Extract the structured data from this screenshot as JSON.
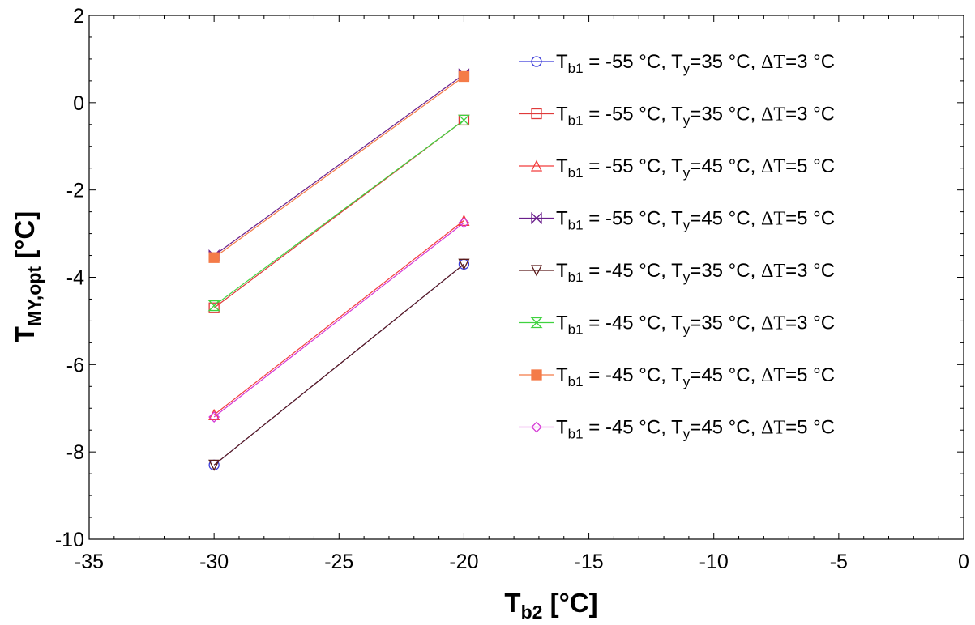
{
  "chart_data": {
    "type": "line",
    "xlabel": {
      "main": "T",
      "sub": "b2",
      "unit": " [°C]"
    },
    "ylabel": {
      "main": "T",
      "sub": "MY,opt",
      "unit": " [°C]"
    },
    "xlim": [
      -35,
      0
    ],
    "ylim": [
      -10,
      2
    ],
    "xticks": [
      -35,
      -30,
      -25,
      -20,
      -15,
      -10,
      -5,
      0
    ],
    "yticks": [
      -10,
      -8,
      -6,
      -4,
      -2,
      0,
      2
    ],
    "x": [
      -30,
      -20
    ],
    "grid": false,
    "legend_position": "top-right",
    "series": [
      {
        "name": "Tb1 = -55 °C, Ty=35 °C, ΔT=3 °C",
        "label_parts": [
          "T",
          "b1",
          " = -55 °C, T",
          "y",
          "=35 °C, ",
          "Δ",
          "T",
          "=3 °C"
        ],
        "color": "#3b3bd9",
        "marker": "circle",
        "values": [
          -8.3,
          -3.7
        ]
      },
      {
        "name": "Tb1 = -55 °C, Ty=35 °C, ΔT=3 °C",
        "label_parts": [
          "T",
          "b1",
          " = -55 °C, T",
          "y",
          "=35 °C, ",
          "Δ",
          "T",
          "=3 °C"
        ],
        "color": "#e03a3a",
        "marker": "square",
        "values": [
          -4.7,
          -0.4
        ]
      },
      {
        "name": "Tb1 = -55 °C, Ty=45 °C, ΔT=5 °C",
        "label_parts": [
          "T",
          "b1",
          " = -55 °C, T",
          "y",
          "=45 °C, ",
          "Δ",
          "T",
          "=5 °C"
        ],
        "color": "#f23c3c",
        "marker": "triangle-up",
        "values": [
          -7.15,
          -2.7
        ]
      },
      {
        "name": "Tb1 = -55 °C, Ty=45 °C, ΔT=5 °C",
        "label_parts": [
          "T",
          "b1",
          " = -55 °C, T",
          "y",
          "=45 °C, ",
          "Δ",
          "T",
          "=5 °C"
        ],
        "color": "#6a1f8c",
        "marker": "bowtie",
        "values": [
          -3.5,
          0.65
        ]
      },
      {
        "name": "Tb1 = -45 °C, Ty=35 °C, ΔT=3 °C",
        "label_parts": [
          "T",
          "b1",
          " = -45 °C, T",
          "y",
          "=35 °C, ",
          "Δ",
          "T",
          "=3 °C"
        ],
        "color": "#5a1a1a",
        "marker": "triangle-down",
        "values": [
          -8.3,
          -3.7
        ]
      },
      {
        "name": "Tb1 = -45 °C, Ty=35 °C, ΔT=3 °C",
        "label_parts": [
          "T",
          "b1",
          " = -45 °C, T",
          "y",
          "=35 °C, ",
          "Δ",
          "T",
          "=3 °C"
        ],
        "color": "#3fd23f",
        "marker": "hourglass",
        "values": [
          -4.65,
          -0.4
        ]
      },
      {
        "name": "Tb1 = -45 °C, Ty=45 °C, ΔT=5 °C",
        "label_parts": [
          "T",
          "b1",
          " = -45 °C, T",
          "y",
          "=45 °C, ",
          "Δ",
          "T",
          "=5 °C"
        ],
        "color": "#f47b48",
        "marker": "square-filled",
        "values": [
          -3.55,
          0.6
        ]
      },
      {
        "name": "Tb1 = -45 °C, Ty=45 °C, ΔT=5 °C",
        "label_parts": [
          "T",
          "b1",
          " = -45 °C, T",
          "y",
          "=45 °C, ",
          "Δ",
          "T",
          "=5 °C"
        ],
        "color": "#d63ad6",
        "marker": "diamond",
        "values": [
          -7.2,
          -2.75
        ]
      }
    ]
  }
}
